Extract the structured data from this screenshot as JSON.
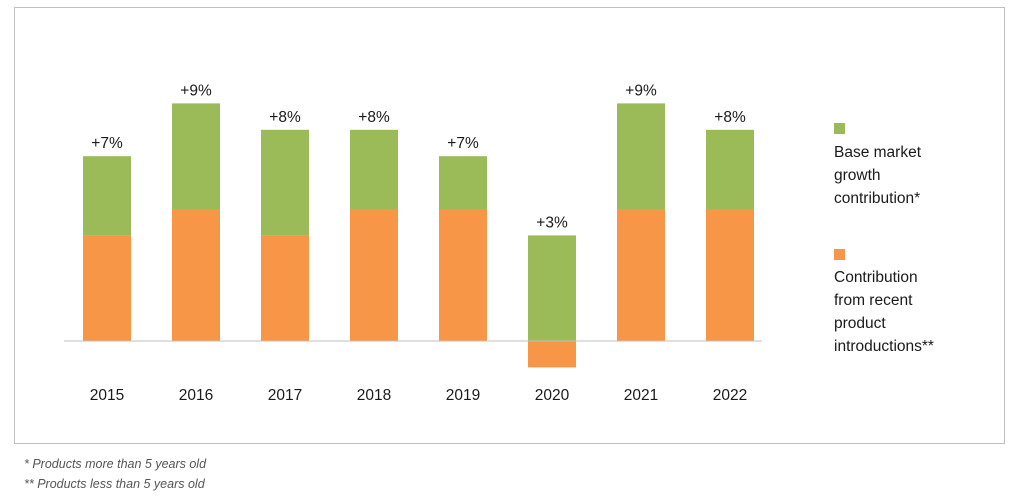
{
  "chart_data": {
    "type": "bar",
    "stacked": true,
    "categories": [
      "2015",
      "2016",
      "2017",
      "2018",
      "2019",
      "2020",
      "2021",
      "2022"
    ],
    "series": [
      {
        "name": "Contribution from recent product introductions**",
        "color": "#f79646",
        "values": [
          4,
          5,
          4,
          5,
          5,
          -1,
          5,
          5
        ]
      },
      {
        "name": "Base market growth contribution*",
        "color": "#9bbb59",
        "values": [
          3,
          4,
          4,
          3,
          2,
          4,
          4,
          3
        ]
      }
    ],
    "totals": [
      "+7%",
      "+9%",
      "+8%",
      "+8%",
      "+7%",
      "+3%",
      "+9%",
      "+8%"
    ],
    "ylim": [
      -1,
      9
    ],
    "grid": false,
    "legend_position": "right"
  },
  "legend": [
    {
      "label": "Base market\ngrowth\ncontribution*",
      "color": "#9bbb59"
    },
    {
      "label": "Contribution\nfrom recent\nproduct\nintroductions**",
      "color": "#f79646"
    }
  ],
  "footnotes": [
    "* Products more than 5 years old",
    "** Products less than 5 years old"
  ]
}
